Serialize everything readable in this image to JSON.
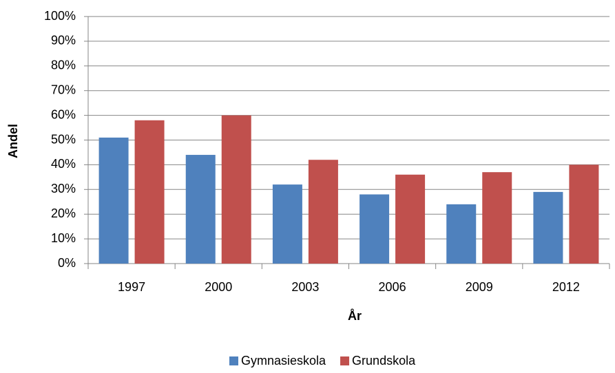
{
  "chart_data": {
    "type": "bar",
    "categories": [
      "1997",
      "2000",
      "2003",
      "2006",
      "2009",
      "2012"
    ],
    "series": [
      {
        "name": "Gymnasieskola",
        "color": "#4f81bd",
        "values": [
          51,
          44,
          32,
          28,
          24,
          29
        ]
      },
      {
        "name": "Grundskola",
        "color": "#c0504d",
        "values": [
          58,
          60,
          42,
          36,
          37,
          40
        ]
      }
    ],
    "xlabel": "År",
    "ylabel": "Andel",
    "ylim": [
      0,
      100
    ],
    "yticks": [
      {
        "value": 0,
        "label": "0%"
      },
      {
        "value": 10,
        "label": "10%"
      },
      {
        "value": 20,
        "label": "20%"
      },
      {
        "value": 30,
        "label": "30%"
      },
      {
        "value": 40,
        "label": "40%"
      },
      {
        "value": 50,
        "label": "50%"
      },
      {
        "value": 60,
        "label": "60%"
      },
      {
        "value": 70,
        "label": "70%"
      },
      {
        "value": 80,
        "label": "80%"
      },
      {
        "value": 90,
        "label": "90%"
      },
      {
        "value": 100,
        "label": "100%"
      }
    ],
    "grid": true,
    "legend": "bottom"
  }
}
